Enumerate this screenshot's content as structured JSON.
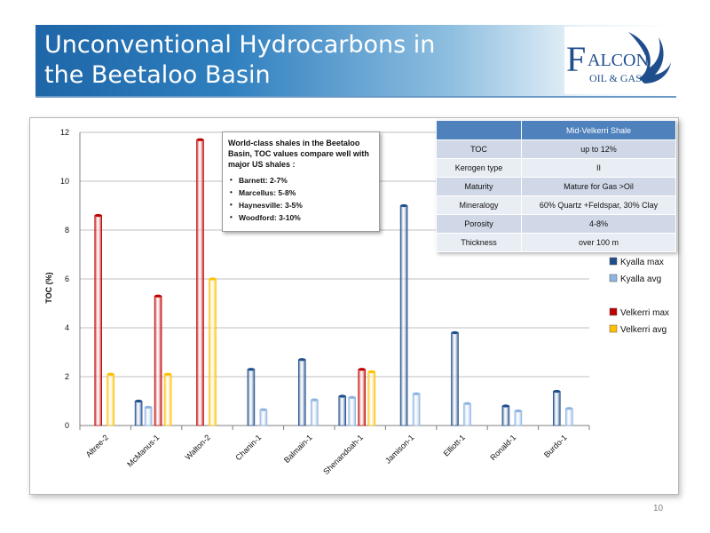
{
  "header": {
    "title_line1": "Unconventional Hydrocarbons in",
    "title_line2": "the Beetaloo Basin",
    "logo_big_letter": "F",
    "logo_word": "ALCON",
    "logo_sub": "OIL & GAS"
  },
  "callout": {
    "title": "World-class shales in the Beetaloo Basin, TOC values compare well with major US shales :",
    "items": [
      "Barnett: 2-7%",
      "Marcellus: 5-8%",
      "Haynesville: 3-5%",
      "Woodford: 3-10%"
    ]
  },
  "table": {
    "header": "Mid-Velkerri Shale",
    "rows": [
      {
        "label": "TOC",
        "value": "up to 12%"
      },
      {
        "label": "Kerogen type",
        "value": "II"
      },
      {
        "label": "Maturity",
        "value": "Mature for Gas >Oil"
      },
      {
        "label": "Mineralogy",
        "value": "60% Quartz +Feldspar, 30% Clay"
      },
      {
        "label": "Porosity",
        "value": "4-8%"
      },
      {
        "label": "Thickness",
        "value": "over 100 m"
      }
    ]
  },
  "page_number": "10",
  "colors": {
    "kyalla_max": "#1f4e8c",
    "kyalla_avg": "#8db4e2",
    "velkerri_max": "#c00000",
    "velkerri_avg": "#ffc000"
  },
  "chart_data": {
    "type": "bar",
    "ylabel": "TOC (%)",
    "xlabel": "",
    "ylim": [
      0,
      12
    ],
    "yticks": [
      0,
      2,
      4,
      6,
      8,
      10,
      12
    ],
    "grid": true,
    "legend_position": "right",
    "categories": [
      "Altree-2",
      "McManus-1",
      "Walton-2",
      "Chanin-1",
      "Balmain-1",
      "Shenandoah-1",
      "Jamison-1",
      "Elliott-1",
      "Ronald-1",
      "Burdo-1"
    ],
    "series": [
      {
        "name": "Kyalla max",
        "color": "#1f4e8c",
        "values": [
          null,
          1.0,
          null,
          2.3,
          2.7,
          1.2,
          9.0,
          3.8,
          0.8,
          1.4
        ]
      },
      {
        "name": "Kyalla avg",
        "color": "#8db4e2",
        "values": [
          null,
          0.75,
          null,
          0.65,
          1.05,
          1.15,
          1.3,
          0.9,
          0.6,
          0.7
        ]
      },
      {
        "name": "Velkerri max",
        "color": "#c00000",
        "values": [
          8.6,
          5.3,
          11.7,
          null,
          null,
          2.3,
          null,
          null,
          null,
          null
        ]
      },
      {
        "name": "Velkerri avg",
        "color": "#ffc000",
        "values": [
          2.1,
          2.1,
          6.0,
          null,
          null,
          2.2,
          null,
          null,
          null,
          null
        ]
      }
    ]
  }
}
